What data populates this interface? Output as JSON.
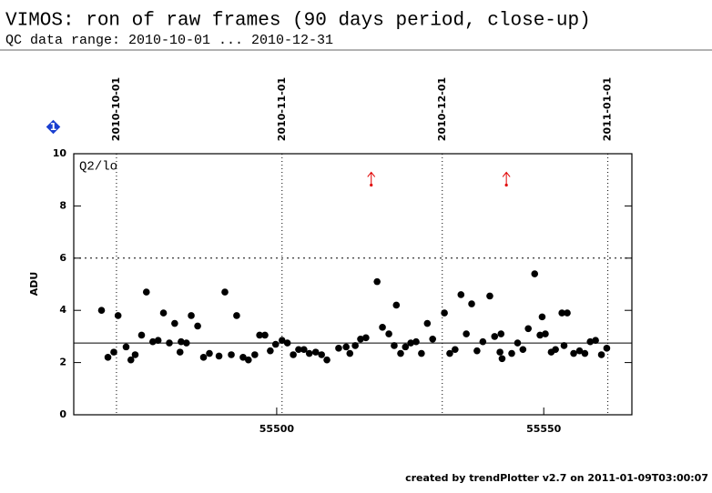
{
  "chart_data": {
    "type": "scatter",
    "title": "VIMOS: ron of raw frames (90 days period, close-up)",
    "subtitle": "QC data range: 2010-10-01 ... 2010-12-31",
    "badge": "1",
    "panel_label": "Q2/lo",
    "ylabel": "ADU",
    "footer": "created by trendPlotter v2.7 on 2011-01-09T03:00:07",
    "xlim": [
      55462,
      55566.5
    ],
    "ylim": [
      0,
      10
    ],
    "xticks": [
      55500,
      55550
    ],
    "yticks": [
      0,
      2,
      4,
      6,
      8,
      10
    ],
    "date_ticks": [
      {
        "value": 55470,
        "label": "2010-10-01"
      },
      {
        "value": 55501,
        "label": "2010-11-01"
      },
      {
        "value": 55531,
        "label": "2010-12-01"
      },
      {
        "value": 55562,
        "label": "2011-01-01"
      }
    ],
    "reference_lines": [
      {
        "value": 2.75,
        "style": "solid"
      },
      {
        "value": 6,
        "style": "dotted"
      }
    ],
    "series": [
      {
        "color": "#000000",
        "x": [
          55467.2,
          55468.4,
          55469.5,
          55470.3,
          55471.8,
          55472.7,
          55473.5,
          55474.7,
          55475.6,
          55476.8,
          55477.8,
          55478.8,
          55479.9,
          55480.9,
          55481.9,
          55482.1,
          55483.1,
          55484.0,
          55485.2,
          55486.3,
          55487.4,
          55489.2,
          55490.3,
          55491.5,
          55492.5,
          55493.7,
          55494.7,
          55495.9,
          55496.8,
          55497.8,
          55498.8,
          55499.8,
          55501.0,
          55502.0,
          55503.1,
          55504.1,
          55505.1,
          55506.1,
          55507.3,
          55508.4,
          55509.4,
          55511.6,
          55513.0,
          55513.7,
          55514.7,
          55515.7,
          55516.7,
          55518.8,
          55519.8,
          55521.0,
          55522.0,
          55522.4,
          55523.2,
          55524.1,
          55525.1,
          55526.1,
          55527.1,
          55528.2,
          55529.2,
          55531.4,
          55532.4,
          55533.4,
          55534.5,
          55535.5,
          55536.5,
          55537.5,
          55538.6,
          55539.9,
          55540.8,
          55541.8,
          55542.0,
          55542.2,
          55544.0,
          55545.1,
          55546.1,
          55547.1,
          55548.3,
          55549.3,
          55549.7,
          55550.3,
          55551.4,
          55552.2,
          55553.4,
          55553.8,
          55554.4,
          55555.6,
          55556.7,
          55557.7,
          55558.7,
          55559.7,
          55560.8,
          55561.8
        ],
        "values": [
          4.0,
          2.2,
          2.4,
          3.8,
          2.6,
          2.1,
          2.3,
          3.05,
          4.7,
          2.8,
          2.85,
          3.9,
          2.75,
          3.5,
          2.4,
          2.8,
          2.75,
          3.8,
          3.4,
          2.2,
          2.35,
          2.25,
          4.7,
          2.3,
          3.8,
          2.2,
          2.1,
          2.3,
          3.05,
          3.05,
          2.45,
          2.7,
          2.85,
          2.75,
          2.3,
          2.5,
          2.5,
          2.35,
          2.4,
          2.3,
          2.1,
          2.55,
          2.6,
          2.35,
          2.65,
          2.9,
          2.95,
          5.1,
          3.35,
          3.1,
          2.65,
          4.2,
          2.35,
          2.6,
          2.75,
          2.8,
          2.35,
          3.5,
          2.9,
          3.9,
          2.35,
          2.5,
          4.6,
          3.1,
          4.25,
          2.45,
          2.8,
          4.55,
          3.0,
          2.4,
          3.1,
          2.15,
          2.35,
          2.75,
          2.5,
          3.3,
          5.4,
          3.05,
          3.75,
          3.1,
          2.4,
          2.5,
          3.9,
          2.65,
          3.9,
          2.35,
          2.45,
          2.35,
          2.8,
          2.85,
          2.3,
          2.55
        ]
      }
    ],
    "outliers": {
      "color": "#e00000",
      "x": [
        55517.7,
        55543.0
      ],
      "values": [
        8.8,
        8.8
      ]
    }
  }
}
